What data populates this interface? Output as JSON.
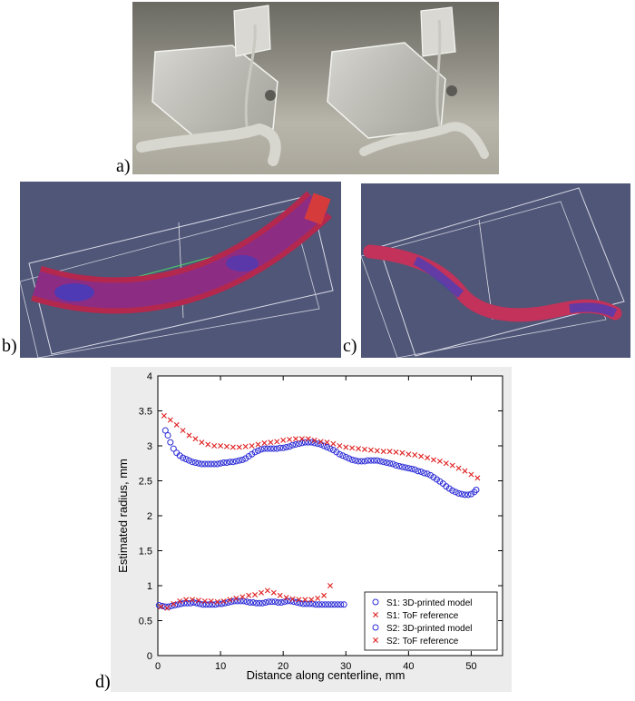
{
  "panels": {
    "a": "a)",
    "b": "b)",
    "c": "c)",
    "d": "d)"
  },
  "chart_data": {
    "type": "scatter",
    "xlabel": "Distance along centerline, mm",
    "ylabel": "Estimated radius, mm",
    "xlim": [
      0,
      55
    ],
    "ylim": [
      0,
      4
    ],
    "x_ticks": [
      "0",
      "10",
      "20",
      "30",
      "40",
      "50"
    ],
    "y_ticks": [
      "0",
      "0.5",
      "1",
      "1.5",
      "2",
      "2.5",
      "3",
      "3.5",
      "4"
    ],
    "legend_position": "bottom-right",
    "series": [
      {
        "name": "S1: 3D-printed model",
        "marker": "circle",
        "color": "#2a2ad6",
        "points": [
          [
            1.2,
            3.22
          ],
          [
            1.6,
            3.15
          ],
          [
            2,
            3.05
          ],
          [
            2.5,
            2.96
          ],
          [
            3,
            2.9
          ],
          [
            3.5,
            2.86
          ],
          [
            4,
            2.83
          ],
          [
            4.5,
            2.81
          ],
          [
            5,
            2.79
          ],
          [
            5.5,
            2.77
          ],
          [
            6,
            2.76
          ],
          [
            6.5,
            2.75
          ],
          [
            7,
            2.74
          ],
          [
            7.5,
            2.74
          ],
          [
            8,
            2.74
          ],
          [
            8.5,
            2.74
          ],
          [
            9,
            2.74
          ],
          [
            9.5,
            2.74
          ],
          [
            10,
            2.75
          ],
          [
            10.5,
            2.76
          ],
          [
            11,
            2.76
          ],
          [
            11.5,
            2.77
          ],
          [
            12,
            2.77
          ],
          [
            12.5,
            2.78
          ],
          [
            13,
            2.79
          ],
          [
            13.5,
            2.8
          ],
          [
            14,
            2.82
          ],
          [
            14.5,
            2.85
          ],
          [
            15,
            2.88
          ],
          [
            15.5,
            2.91
          ],
          [
            16,
            2.93
          ],
          [
            16.5,
            2.95
          ],
          [
            17,
            2.96
          ],
          [
            17.5,
            2.96
          ],
          [
            18,
            2.96
          ],
          [
            18.5,
            2.96
          ],
          [
            19,
            2.96
          ],
          [
            19.5,
            2.97
          ],
          [
            20,
            2.97
          ],
          [
            20.5,
            2.98
          ],
          [
            21,
            2.99
          ],
          [
            21.5,
            3.01
          ],
          [
            22,
            3.02
          ],
          [
            22.5,
            3.03
          ],
          [
            23,
            3.04
          ],
          [
            23.5,
            3.05
          ],
          [
            24,
            3.05
          ],
          [
            24.5,
            3.05
          ],
          [
            25,
            3.04
          ],
          [
            25.5,
            3.03
          ],
          [
            26,
            3.02
          ],
          [
            26.5,
            3.0
          ],
          [
            27,
            2.98
          ],
          [
            27.5,
            2.96
          ],
          [
            28,
            2.94
          ],
          [
            28.5,
            2.91
          ],
          [
            29,
            2.88
          ],
          [
            29.5,
            2.86
          ],
          [
            30,
            2.84
          ],
          [
            30.5,
            2.82
          ],
          [
            31,
            2.8
          ],
          [
            31.5,
            2.79
          ],
          [
            32,
            2.78
          ],
          [
            32.5,
            2.78
          ],
          [
            33,
            2.78
          ],
          [
            33.5,
            2.79
          ],
          [
            34,
            2.79
          ],
          [
            34.5,
            2.79
          ],
          [
            35,
            2.79
          ],
          [
            35.5,
            2.78
          ],
          [
            36,
            2.77
          ],
          [
            36.5,
            2.76
          ],
          [
            37,
            2.75
          ],
          [
            37.5,
            2.74
          ],
          [
            38,
            2.72
          ],
          [
            38.5,
            2.71
          ],
          [
            39,
            2.7
          ],
          [
            39.5,
            2.69
          ],
          [
            40,
            2.68
          ],
          [
            40.5,
            2.67
          ],
          [
            41,
            2.66
          ],
          [
            41.5,
            2.64
          ],
          [
            42,
            2.63
          ],
          [
            42.5,
            2.61
          ],
          [
            43,
            2.6
          ],
          [
            43.5,
            2.58
          ],
          [
            44,
            2.55
          ],
          [
            44.5,
            2.52
          ],
          [
            45,
            2.49
          ],
          [
            45.5,
            2.46
          ],
          [
            46,
            2.42
          ],
          [
            46.5,
            2.39
          ],
          [
            47,
            2.36
          ],
          [
            47.5,
            2.34
          ],
          [
            48,
            2.32
          ],
          [
            48.5,
            2.31
          ],
          [
            49,
            2.3
          ],
          [
            49.5,
            2.3
          ],
          [
            50,
            2.31
          ],
          [
            50.5,
            2.34
          ],
          [
            50.8,
            2.37
          ]
        ]
      },
      {
        "name": "S1: ToF reference",
        "marker": "x",
        "color": "#e02020",
        "points": [
          [
            1,
            3.43
          ],
          [
            2,
            3.37
          ],
          [
            3,
            3.3
          ],
          [
            4,
            3.22
          ],
          [
            5,
            3.15
          ],
          [
            6,
            3.1
          ],
          [
            7,
            3.05
          ],
          [
            8,
            3.02
          ],
          [
            9,
            3.0
          ],
          [
            10,
            3.0
          ],
          [
            11,
            2.99
          ],
          [
            12,
            2.98
          ],
          [
            13,
            2.98
          ],
          [
            14,
            2.99
          ],
          [
            15,
            3.0
          ],
          [
            16,
            3.02
          ],
          [
            17,
            3.04
          ],
          [
            18,
            3.05
          ],
          [
            19,
            3.06
          ],
          [
            20,
            3.08
          ],
          [
            21,
            3.09
          ],
          [
            22,
            3.1
          ],
          [
            23,
            3.1
          ],
          [
            24,
            3.1
          ],
          [
            25,
            3.08
          ],
          [
            26,
            3.06
          ],
          [
            27,
            3.05
          ],
          [
            28,
            3.03
          ],
          [
            29,
            3.0
          ],
          [
            30,
            2.98
          ],
          [
            31,
            2.97
          ],
          [
            32,
            2.96
          ],
          [
            33,
            2.95
          ],
          [
            34,
            2.94
          ],
          [
            35,
            2.93
          ],
          [
            36,
            2.92
          ],
          [
            37,
            2.92
          ],
          [
            38,
            2.91
          ],
          [
            39,
            2.9
          ],
          [
            40,
            2.88
          ],
          [
            41,
            2.87
          ],
          [
            42,
            2.85
          ],
          [
            43,
            2.83
          ],
          [
            44,
            2.8
          ],
          [
            45,
            2.78
          ],
          [
            46,
            2.75
          ],
          [
            47,
            2.72
          ],
          [
            48,
            2.68
          ],
          [
            49,
            2.64
          ],
          [
            50,
            2.59
          ],
          [
            51,
            2.54
          ]
        ]
      },
      {
        "name": "S2: 3D-printed model",
        "marker": "circle",
        "color": "#2a2ad6",
        "points": [
          [
            0.2,
            0.72
          ],
          [
            0.7,
            0.71
          ],
          [
            1.2,
            0.7
          ],
          [
            1.7,
            0.7
          ],
          [
            2.2,
            0.71
          ],
          [
            2.7,
            0.72
          ],
          [
            3.2,
            0.73
          ],
          [
            3.7,
            0.74
          ],
          [
            4.2,
            0.75
          ],
          [
            4.7,
            0.75
          ],
          [
            5.2,
            0.75
          ],
          [
            5.7,
            0.76
          ],
          [
            6.2,
            0.75
          ],
          [
            6.7,
            0.74
          ],
          [
            7.2,
            0.73
          ],
          [
            7.7,
            0.73
          ],
          [
            8.2,
            0.73
          ],
          [
            8.7,
            0.73
          ],
          [
            9.2,
            0.73
          ],
          [
            9.7,
            0.74
          ],
          [
            10.2,
            0.74
          ],
          [
            10.7,
            0.75
          ],
          [
            11.2,
            0.76
          ],
          [
            11.7,
            0.77
          ],
          [
            12.2,
            0.78
          ],
          [
            12.7,
            0.78
          ],
          [
            13.2,
            0.78
          ],
          [
            13.7,
            0.78
          ],
          [
            14.2,
            0.77
          ],
          [
            14.7,
            0.76
          ],
          [
            15.2,
            0.76
          ],
          [
            15.7,
            0.75
          ],
          [
            16.2,
            0.75
          ],
          [
            16.7,
            0.75
          ],
          [
            17.2,
            0.76
          ],
          [
            17.7,
            0.77
          ],
          [
            18.2,
            0.77
          ],
          [
            18.7,
            0.77
          ],
          [
            19.2,
            0.76
          ],
          [
            19.7,
            0.76
          ],
          [
            20.2,
            0.77
          ],
          [
            20.7,
            0.78
          ],
          [
            21.2,
            0.78
          ],
          [
            21.7,
            0.77
          ],
          [
            22.2,
            0.76
          ],
          [
            22.7,
            0.75
          ],
          [
            23.2,
            0.74
          ],
          [
            23.7,
            0.74
          ],
          [
            24.2,
            0.74
          ],
          [
            24.7,
            0.74
          ],
          [
            25.2,
            0.73
          ],
          [
            25.7,
            0.73
          ],
          [
            26.2,
            0.73
          ],
          [
            26.7,
            0.73
          ],
          [
            27.2,
            0.73
          ],
          [
            27.7,
            0.73
          ],
          [
            28.2,
            0.73
          ],
          [
            28.7,
            0.73
          ],
          [
            29.2,
            0.73
          ],
          [
            29.7,
            0.73
          ]
        ]
      },
      {
        "name": "S2: ToF reference",
        "marker": "x",
        "color": "#e02020",
        "points": [
          [
            0.5,
            0.7
          ],
          [
            1.5,
            0.68
          ],
          [
            2.5,
            0.74
          ],
          [
            3.5,
            0.78
          ],
          [
            4.5,
            0.8
          ],
          [
            5.5,
            0.8
          ],
          [
            6.5,
            0.79
          ],
          [
            7.5,
            0.78
          ],
          [
            8.5,
            0.78
          ],
          [
            9.5,
            0.77
          ],
          [
            10.5,
            0.78
          ],
          [
            11.5,
            0.8
          ],
          [
            12.5,
            0.82
          ],
          [
            13.5,
            0.84
          ],
          [
            14.5,
            0.86
          ],
          [
            15.5,
            0.87
          ],
          [
            16.5,
            0.9
          ],
          [
            17.5,
            0.93
          ],
          [
            18.5,
            0.9
          ],
          [
            19.5,
            0.86
          ],
          [
            20.5,
            0.83
          ],
          [
            21.5,
            0.81
          ],
          [
            22.5,
            0.8
          ],
          [
            23.5,
            0.8
          ],
          [
            24.5,
            0.8
          ],
          [
            25.5,
            0.82
          ],
          [
            26.5,
            0.86
          ],
          [
            27.5,
            1.0
          ]
        ]
      }
    ]
  }
}
